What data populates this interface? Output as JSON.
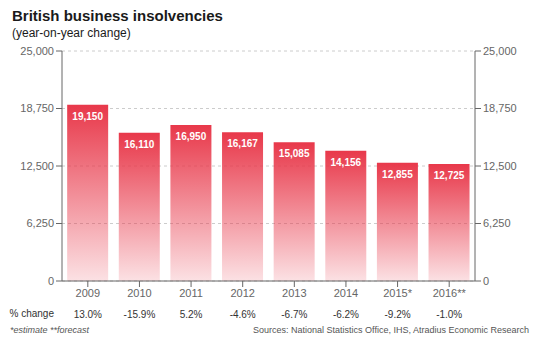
{
  "chart_data": {
    "type": "bar",
    "title": "British business insolvencies",
    "subtitle": "(year-on-year change)",
    "categories": [
      "2009",
      "2010",
      "2011",
      "2012",
      "2013",
      "2014",
      "2015*",
      "2016**"
    ],
    "values": [
      19150,
      16110,
      16950,
      16167,
      15085,
      14156,
      12855,
      12725
    ],
    "value_labels": [
      "19,150",
      "16,110",
      "16,950",
      "16,167",
      "15,085",
      "14,156",
      "12,855",
      "12,725"
    ],
    "data_labels": true,
    "color": "#e8384a",
    "ylim": [
      0,
      25000
    ],
    "yticks": [
      0,
      {
        "value": 6250,
        "label": "6,250"
      },
      {
        "value": 12500,
        "label": "12,500"
      },
      {
        "value": 18750,
        "label": "18,750"
      },
      {
        "value": 25000,
        "label": "25,000"
      }
    ],
    "y2lim": [
      0,
      25000
    ],
    "y2ticks": [
      0,
      {
        "value": 6250,
        "label": "6,250"
      },
      {
        "value": 12500,
        "label": "12,500"
      },
      {
        "value": 18750,
        "label": "18,750"
      },
      {
        "value": 25000,
        "label": "25,000"
      }
    ],
    "grid": true,
    "pct_label": "% change",
    "pct_changes": [
      "13.0%",
      "-15.9%",
      "5.2%",
      "-4.6%",
      "-6.7%",
      "-6.2%",
      "-9.2%",
      "-1.0%"
    ],
    "annotations": [
      "*estimate  **forecast",
      "Sources: National Statistics Office, IHS, Atradius Economic Research"
    ]
  }
}
